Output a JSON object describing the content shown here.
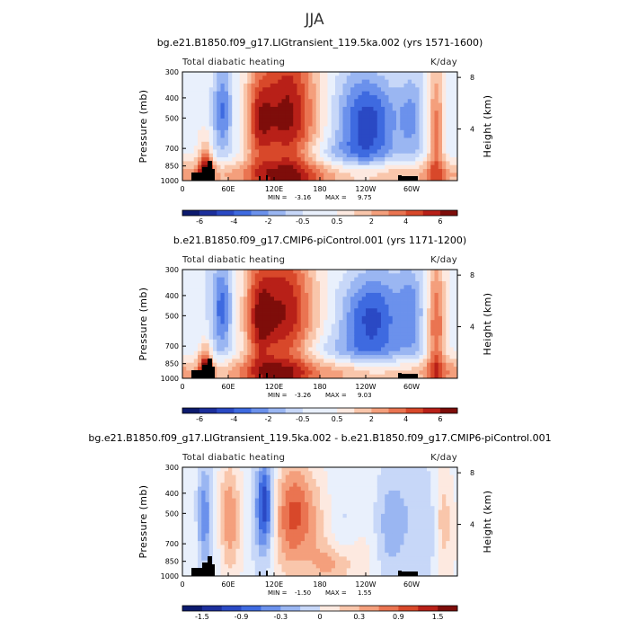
{
  "figure": {
    "title": "JJA"
  },
  "colormap": [
    "#0c1a6e",
    "#1c2f9c",
    "#2a49c4",
    "#3e6ae0",
    "#6b91ec",
    "#9ab6f2",
    "#c7d7f8",
    "#e9f0fc",
    "#fde9e0",
    "#f9c6ab",
    "#f49f7c",
    "#ea7451",
    "#d8482a",
    "#b82018",
    "#7e0d0a"
  ],
  "chart_data": [
    {
      "type": "heatmap",
      "name": "panel-1",
      "title": "bg.e21.B1850.f09_g17.LIGtransient_119.5ka.002 (yrs 1571-1600)",
      "left_label": "Total diabatic heating",
      "right_label": "K/day",
      "ylabel": "Pressure (mb)",
      "ylabel_right": "Height (km)",
      "x_ticks": [
        "0",
        "60E",
        "120E",
        "180",
        "120W",
        "60W"
      ],
      "y_ticks": [
        "300",
        "400",
        "500",
        "700",
        "850",
        "1000"
      ],
      "y_ticks_right": [
        "8",
        "4"
      ],
      "min_label": "MIN =",
      "min": "-3.16",
      "max_label": "MAX =",
      "max": "9.75",
      "colorbar_labels": [
        "-6",
        "-4",
        "-2",
        "-0.5",
        "0.5",
        "2",
        "4",
        "6"
      ],
      "colorbar_levels": [
        -8,
        -6,
        -5,
        -4,
        -3,
        -2,
        -1,
        -0.5,
        0,
        0.5,
        1,
        2,
        3,
        4,
        5,
        6,
        8
      ]
    },
    {
      "type": "heatmap",
      "name": "panel-2",
      "title": "b.e21.B1850.f09_g17.CMIP6-piControl.001 (yrs 1171-1200)",
      "left_label": "Total diabatic heating",
      "right_label": "K/day",
      "ylabel": "Pressure (mb)",
      "ylabel_right": "Height (km)",
      "x_ticks": [
        "0",
        "60E",
        "120E",
        "180",
        "120W",
        "60W"
      ],
      "y_ticks": [
        "300",
        "400",
        "500",
        "700",
        "850",
        "1000"
      ],
      "y_ticks_right": [
        "8",
        "4"
      ],
      "min_label": "MIN =",
      "min": "-3.26",
      "max_label": "MAX =",
      "max": "9.03",
      "colorbar_labels": [
        "-6",
        "-4",
        "-2",
        "-0.5",
        "0.5",
        "2",
        "4",
        "6"
      ],
      "colorbar_levels": [
        -8,
        -6,
        -5,
        -4,
        -3,
        -2,
        -1,
        -0.5,
        0,
        0.5,
        1,
        2,
        3,
        4,
        5,
        6,
        8
      ]
    },
    {
      "type": "heatmap",
      "name": "panel-3",
      "title": "bg.e21.B1850.f09_g17.LIGtransient_119.5ka.002 - b.e21.B1850.f09_g17.CMIP6-piControl.001",
      "left_label": "Total diabatic heating",
      "right_label": "K/day",
      "ylabel": "Pressure (mb)",
      "ylabel_right": "Height (km)",
      "x_ticks": [
        "0",
        "60E",
        "120E",
        "180",
        "120W",
        "60W"
      ],
      "y_ticks": [
        "300",
        "400",
        "500",
        "700",
        "850",
        "1000"
      ],
      "y_ticks_right": [
        "8",
        "4"
      ],
      "min_label": "MIN =",
      "min": "-1.50",
      "max_label": "MAX =",
      "max": "1.55",
      "colorbar_labels": [
        "-1.5",
        "-0.9",
        "-0.3",
        "0",
        "0.3",
        "0.9",
        "1.5"
      ],
      "colorbar_levels": [
        -2,
        -1.5,
        -1.2,
        -0.9,
        -0.6,
        -0.3,
        -0.1,
        0,
        0.1,
        0.3,
        0.6,
        0.9,
        1.2,
        1.5,
        2
      ]
    }
  ]
}
